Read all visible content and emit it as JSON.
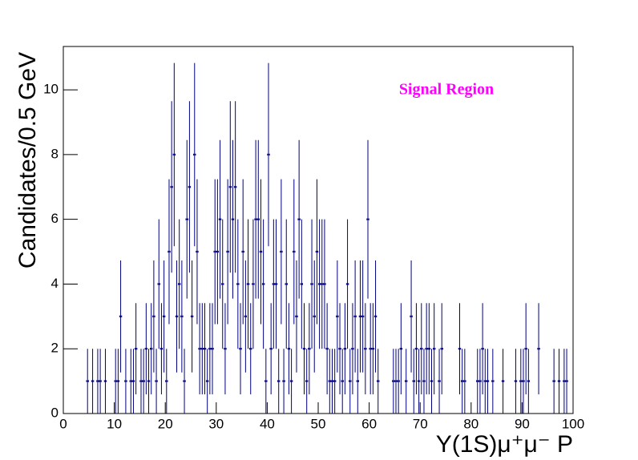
{
  "chart_data": {
    "type": "scatter",
    "x_label": "Υ(1S)μ⁺μ⁻ P",
    "y_label": "Candidates/0.5 GeV",
    "annotation": "Signal Region",
    "annotation_color": "#ff00ff",
    "color": "#000080",
    "xlim": [
      0,
      100
    ],
    "ylim": [
      0,
      11.34
    ],
    "xticks": [
      0,
      10,
      20,
      30,
      40,
      50,
      60,
      70,
      80,
      90,
      100
    ],
    "yticks": [
      0,
      2,
      4,
      6,
      8,
      10
    ],
    "x": [
      4.75,
      5.75,
      6.75,
      7.25,
      8.25,
      10.25,
      10.75,
      11.25,
      12.25,
      13.25,
      13.75,
      14.25,
      15.25,
      15.75,
      16.25,
      16.75,
      17.25,
      17.75,
      18.25,
      18.75,
      19.25,
      19.75,
      20.25,
      20.75,
      21.25,
      21.75,
      22.25,
      22.75,
      23.25,
      23.75,
      24.25,
      24.75,
      25.25,
      25.75,
      26.25,
      26.75,
      27.25,
      27.75,
      28.25,
      28.75,
      29.25,
      29.75,
      30.25,
      30.75,
      31.25,
      31.75,
      32.25,
      32.75,
      33.25,
      33.75,
      34.25,
      34.75,
      35.25,
      35.75,
      36.25,
      36.75,
      37.25,
      37.75,
      38.25,
      38.75,
      39.25,
      39.75,
      40.25,
      40.75,
      41.25,
      41.75,
      42.25,
      42.75,
      43.25,
      43.75,
      44.25,
      44.75,
      45.25,
      45.75,
      46.25,
      46.75,
      47.25,
      47.75,
      48.25,
      48.75,
      49.25,
      49.75,
      50.25,
      50.75,
      51.25,
      51.75,
      52.25,
      52.75,
      53.25,
      53.75,
      54.25,
      54.75,
      55.25,
      55.75,
      56.25,
      56.75,
      57.25,
      57.75,
      58.25,
      58.75,
      59.25,
      59.75,
      60.25,
      60.75,
      61.25,
      61.75,
      64.75,
      65.25,
      65.75,
      66.25,
      67.25,
      68.25,
      68.75,
      69.25,
      69.75,
      70.25,
      70.75,
      71.25,
      71.75,
      72.25,
      72.75,
      73.75,
      74.25,
      77.75,
      78.25,
      78.75,
      81.25,
      81.75,
      82.25,
      82.75,
      83.25,
      84.25,
      86.25,
      88.75,
      89.75,
      90.25,
      90.75,
      91.25,
      93.25,
      96.25,
      97.25,
      98.25,
      98.75
    ],
    "values": [
      1,
      1,
      1,
      1,
      1,
      1,
      1,
      3,
      1,
      1,
      1,
      2,
      1,
      1,
      2,
      1,
      2,
      3,
      1,
      4,
      2,
      3,
      1,
      5,
      7,
      8,
      3,
      4,
      3,
      1,
      6,
      7,
      3,
      8,
      5,
      2,
      2,
      2,
      1,
      2,
      2,
      5,
      5,
      6,
      4,
      2,
      5,
      7,
      6,
      7,
      4,
      2,
      5,
      3,
      4,
      2,
      4,
      6,
      6,
      5,
      4,
      1,
      8,
      2,
      4,
      4,
      1,
      5,
      1,
      4,
      2,
      1,
      5,
      3,
      6,
      4,
      2,
      1,
      2,
      4,
      3,
      5,
      4,
      4,
      4,
      2,
      1,
      1,
      1,
      3,
      2,
      1,
      2,
      4,
      1,
      2,
      3,
      1,
      3,
      3,
      2,
      6,
      2,
      2,
      3,
      1,
      1,
      1,
      1,
      2,
      1,
      3,
      1,
      2,
      1,
      2,
      1,
      2,
      2,
      1,
      2,
      1,
      2,
      2,
      1,
      1,
      1,
      1,
      2,
      1,
      1,
      1,
      1,
      1,
      1,
      1,
      2,
      1,
      2,
      1,
      1,
      1,
      1
    ],
    "errors": [
      1,
      1,
      1,
      1,
      1,
      1,
      1,
      1.73,
      1,
      1,
      1,
      1.41,
      1,
      1,
      1.41,
      1,
      1.41,
      1.73,
      1,
      2,
      1.41,
      1.73,
      1,
      2.24,
      2.65,
      2.83,
      1.73,
      2,
      1.73,
      1,
      2.45,
      2.65,
      1.73,
      2.83,
      2.24,
      1.41,
      1.41,
      1.41,
      1,
      1.41,
      1.41,
      2.24,
      2.24,
      2.45,
      2,
      1.41,
      2.24,
      2.65,
      2.45,
      2.65,
      2,
      1.41,
      2.24,
      1.73,
      2,
      1.41,
      2,
      2.45,
      2.45,
      2.24,
      2,
      1,
      2.83,
      1.41,
      2,
      2,
      1,
      2.24,
      1,
      2,
      1.41,
      1,
      2.24,
      1.73,
      2.45,
      2,
      1.41,
      1,
      1.41,
      2,
      1.73,
      2.24,
      2,
      2,
      2,
      1.41,
      1,
      1,
      1,
      1.73,
      1.41,
      1,
      1.41,
      2,
      1,
      1.41,
      1.73,
      1,
      1.73,
      1.73,
      1.41,
      2.45,
      1.41,
      1.41,
      1.73,
      1,
      1,
      1,
      1,
      1.41,
      1,
      1.73,
      1,
      1.41,
      1,
      1.41,
      1,
      1.41,
      1.41,
      1,
      1.41,
      1,
      1.41,
      1.41,
      1,
      1,
      1,
      1,
      1.41,
      1,
      1,
      1,
      1,
      1,
      1,
      1,
      1.41,
      1,
      1.41,
      1,
      1,
      1,
      1
    ]
  }
}
